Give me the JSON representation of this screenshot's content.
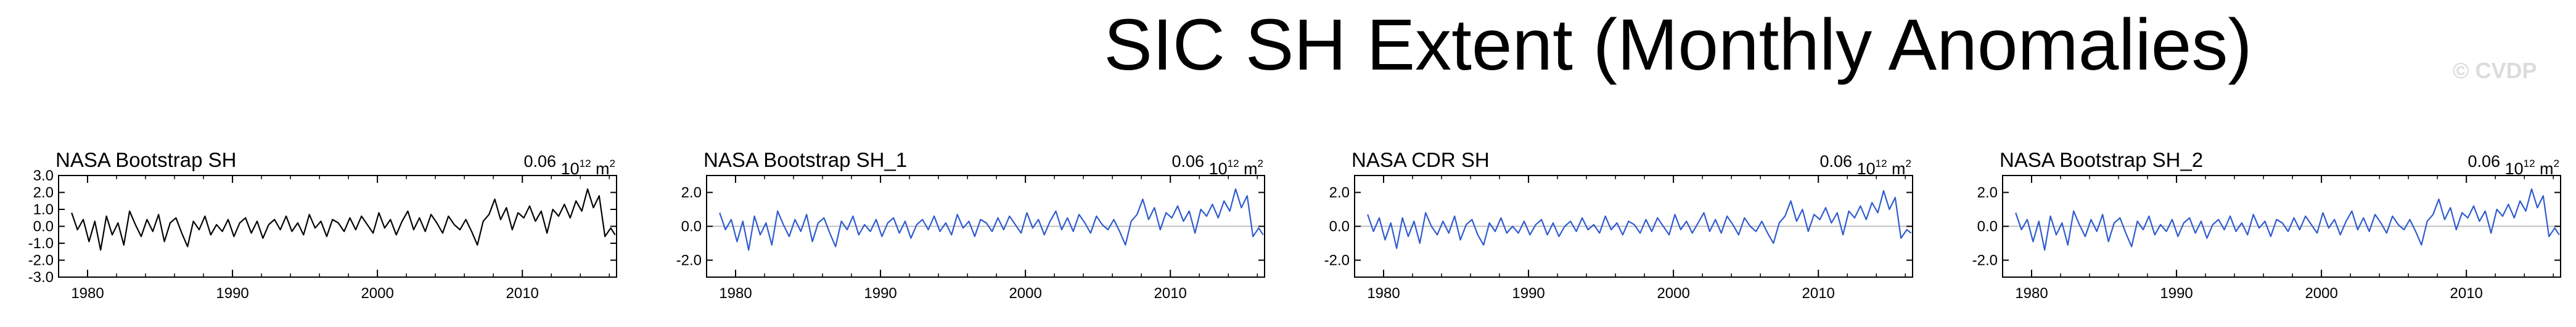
{
  "figure": {
    "title": "SIC SH Extent (Monthly Anomalies)",
    "credit": "© CVDP"
  },
  "colors": {
    "black_series": "#000000",
    "blue_series": "#2f5bd0",
    "zero_line": "#bfbfbf",
    "credit": "#dcdcdc"
  },
  "chart_data": [
    {
      "type": "line",
      "title": "NASA Bootstrap SH",
      "units": {
        "value": "0.06",
        "base": "10",
        "exp": "12",
        "unit": "m",
        "unit_exp": "2"
      },
      "series_color": "#000000",
      "xlim": [
        1978,
        2016.5
      ],
      "ylim": [
        -3.0,
        3.0
      ],
      "yticks": [
        3.0,
        2.0,
        1.0,
        0.0,
        -1.0,
        -2.0,
        -3.0
      ],
      "yticklabels": [
        "3.0",
        "2.0",
        "1.0",
        "0.0",
        "-1.0",
        "-2.0",
        "-3.0"
      ],
      "xticks": [
        1980,
        1990,
        2000,
        2010
      ],
      "xticklabels": [
        "1980",
        "1990",
        "2000",
        "2010"
      ],
      "zero_line": false,
      "x": [
        1978.9,
        1979.3,
        1979.7,
        1980.1,
        1980.5,
        1980.9,
        1981.3,
        1981.7,
        1982.1,
        1982.5,
        1982.9,
        1983.3,
        1983.7,
        1984.1,
        1984.5,
        1984.9,
        1985.3,
        1985.7,
        1986.1,
        1986.5,
        1986.9,
        1987.3,
        1987.7,
        1988.1,
        1988.5,
        1988.9,
        1989.3,
        1989.7,
        1990.1,
        1990.5,
        1990.9,
        1991.3,
        1991.7,
        1992.1,
        1992.5,
        1992.9,
        1993.3,
        1993.7,
        1994.1,
        1994.5,
        1994.9,
        1995.3,
        1995.7,
        1996.1,
        1996.5,
        1996.9,
        1997.3,
        1997.7,
        1998.1,
        1998.5,
        1998.9,
        1999.3,
        1999.7,
        2000.1,
        2000.5,
        2000.9,
        2001.3,
        2001.7,
        2002.1,
        2002.5,
        2002.9,
        2003.3,
        2003.7,
        2004.1,
        2004.5,
        2004.9,
        2005.3,
        2005.7,
        2006.1,
        2006.5,
        2006.9,
        2007.3,
        2007.7,
        2008.1,
        2008.5,
        2008.9,
        2009.3,
        2009.7,
        2010.1,
        2010.5,
        2010.9,
        2011.3,
        2011.7,
        2012.1,
        2012.5,
        2012.9,
        2013.3,
        2013.7,
        2014.1,
        2014.5,
        2014.9,
        2015.3,
        2015.7,
        2016.1,
        2016.4
      ],
      "y": [
        0.8,
        -0.2,
        0.4,
        -0.9,
        0.3,
        -1.4,
        0.6,
        -0.5,
        0.2,
        -1.1,
        0.9,
        0.1,
        -0.6,
        0.4,
        -0.3,
        0.7,
        -0.9,
        0.2,
        0.5,
        -0.4,
        -1.2,
        0.3,
        -0.2,
        0.6,
        -0.5,
        0.1,
        -0.3,
        0.4,
        -0.6,
        0.2,
        0.5,
        -0.4,
        0.3,
        -0.7,
        0.1,
        0.4,
        -0.2,
        0.6,
        -0.3,
        0.2,
        -0.5,
        0.7,
        -0.1,
        0.3,
        -0.6,
        0.4,
        0.2,
        -0.3,
        0.5,
        -0.2,
        0.6,
        0.1,
        -0.4,
        0.8,
        -0.1,
        0.4,
        -0.5,
        0.3,
        0.9,
        -0.2,
        0.5,
        -0.3,
        0.7,
        0.2,
        -0.4,
        0.6,
        0.1,
        -0.2,
        0.4,
        -0.3,
        -1.1,
        0.3,
        0.7,
        1.6,
        0.4,
        1.1,
        -0.2,
        0.8,
        0.5,
        1.2,
        0.3,
        0.9,
        -0.4,
        1.0,
        0.6,
        1.3,
        0.5,
        1.5,
        0.9,
        2.2,
        1.1,
        1.8,
        -0.6,
        -0.1,
        -0.5
      ]
    },
    {
      "type": "line",
      "title": "NASA Bootstrap SH_1",
      "units": {
        "value": "0.06",
        "base": "10",
        "exp": "12",
        "unit": "m",
        "unit_exp": "2"
      },
      "series_color": "#2f5bd0",
      "xlim": [
        1978,
        2016.5
      ],
      "ylim": [
        -3.0,
        3.0
      ],
      "yticks": [
        2.0,
        0.0,
        -2.0
      ],
      "yticklabels": [
        "2.0",
        "0.0",
        "-2.0"
      ],
      "xticks": [
        1980,
        1990,
        2000,
        2010
      ],
      "xticklabels": [
        "1980",
        "1990",
        "2000",
        "2010"
      ],
      "zero_line": true,
      "x": [
        1978.9,
        1979.3,
        1979.7,
        1980.1,
        1980.5,
        1980.9,
        1981.3,
        1981.7,
        1982.1,
        1982.5,
        1982.9,
        1983.3,
        1983.7,
        1984.1,
        1984.5,
        1984.9,
        1985.3,
        1985.7,
        1986.1,
        1986.5,
        1986.9,
        1987.3,
        1987.7,
        1988.1,
        1988.5,
        1988.9,
        1989.3,
        1989.7,
        1990.1,
        1990.5,
        1990.9,
        1991.3,
        1991.7,
        1992.1,
        1992.5,
        1992.9,
        1993.3,
        1993.7,
        1994.1,
        1994.5,
        1994.9,
        1995.3,
        1995.7,
        1996.1,
        1996.5,
        1996.9,
        1997.3,
        1997.7,
        1998.1,
        1998.5,
        1998.9,
        1999.3,
        1999.7,
        2000.1,
        2000.5,
        2000.9,
        2001.3,
        2001.7,
        2002.1,
        2002.5,
        2002.9,
        2003.3,
        2003.7,
        2004.1,
        2004.5,
        2004.9,
        2005.3,
        2005.7,
        2006.1,
        2006.5,
        2006.9,
        2007.3,
        2007.7,
        2008.1,
        2008.5,
        2008.9,
        2009.3,
        2009.7,
        2010.1,
        2010.5,
        2010.9,
        2011.3,
        2011.7,
        2012.1,
        2012.5,
        2012.9,
        2013.3,
        2013.7,
        2014.1,
        2014.5,
        2014.9,
        2015.3,
        2015.7,
        2016.1,
        2016.4
      ],
      "y": [
        0.8,
        -0.2,
        0.4,
        -0.9,
        0.3,
        -1.4,
        0.6,
        -0.5,
        0.2,
        -1.1,
        0.9,
        0.1,
        -0.6,
        0.4,
        -0.3,
        0.7,
        -0.9,
        0.2,
        0.5,
        -0.4,
        -1.2,
        0.3,
        -0.2,
        0.6,
        -0.5,
        0.1,
        -0.3,
        0.4,
        -0.6,
        0.2,
        0.5,
        -0.4,
        0.3,
        -0.7,
        0.1,
        0.4,
        -0.2,
        0.6,
        -0.3,
        0.2,
        -0.5,
        0.7,
        -0.1,
        0.3,
        -0.6,
        0.4,
        0.2,
        -0.3,
        0.5,
        -0.2,
        0.6,
        0.1,
        -0.4,
        0.8,
        -0.1,
        0.4,
        -0.5,
        0.3,
        0.9,
        -0.2,
        0.5,
        -0.3,
        0.7,
        0.2,
        -0.4,
        0.6,
        0.1,
        -0.2,
        0.4,
        -0.3,
        -1.1,
        0.3,
        0.7,
        1.6,
        0.4,
        1.1,
        -0.2,
        0.8,
        0.5,
        1.2,
        0.3,
        0.9,
        -0.4,
        1.0,
        0.6,
        1.3,
        0.5,
        1.5,
        0.9,
        2.2,
        1.1,
        1.8,
        -0.6,
        -0.1,
        -0.5
      ]
    },
    {
      "type": "line",
      "title": "NASA CDR SH",
      "units": {
        "value": "0.06",
        "base": "10",
        "exp": "12",
        "unit": "m",
        "unit_exp": "2"
      },
      "series_color": "#2f5bd0",
      "xlim": [
        1978,
        2016.5
      ],
      "ylim": [
        -3.0,
        3.0
      ],
      "yticks": [
        2.0,
        0.0,
        -2.0
      ],
      "yticklabels": [
        "2.0",
        "0.0",
        "-2.0"
      ],
      "xticks": [
        1980,
        1990,
        2000,
        2010
      ],
      "xticklabels": [
        "1980",
        "1990",
        "2000",
        "2010"
      ],
      "zero_line": true,
      "x": [
        1978.9,
        1979.3,
        1979.7,
        1980.1,
        1980.5,
        1980.9,
        1981.3,
        1981.7,
        1982.1,
        1982.5,
        1982.9,
        1983.3,
        1983.7,
        1984.1,
        1984.5,
        1984.9,
        1985.3,
        1985.7,
        1986.1,
        1986.5,
        1986.9,
        1987.3,
        1987.7,
        1988.1,
        1988.5,
        1988.9,
        1989.3,
        1989.7,
        1990.1,
        1990.5,
        1990.9,
        1991.3,
        1991.7,
        1992.1,
        1992.5,
        1992.9,
        1993.3,
        1993.7,
        1994.1,
        1994.5,
        1994.9,
        1995.3,
        1995.7,
        1996.1,
        1996.5,
        1996.9,
        1997.3,
        1997.7,
        1998.1,
        1998.5,
        1998.9,
        1999.3,
        1999.7,
        2000.1,
        2000.5,
        2000.9,
        2001.3,
        2001.7,
        2002.1,
        2002.5,
        2002.9,
        2003.3,
        2003.7,
        2004.1,
        2004.5,
        2004.9,
        2005.3,
        2005.7,
        2006.1,
        2006.5,
        2006.9,
        2007.3,
        2007.7,
        2008.1,
        2008.5,
        2008.9,
        2009.3,
        2009.7,
        2010.1,
        2010.5,
        2010.9,
        2011.3,
        2011.7,
        2012.1,
        2012.5,
        2012.9,
        2013.3,
        2013.7,
        2014.1,
        2014.5,
        2014.9,
        2015.3,
        2015.7,
        2016.1,
        2016.4
      ],
      "y": [
        0.7,
        -0.3,
        0.5,
        -0.8,
        0.2,
        -1.3,
        0.5,
        -0.6,
        0.3,
        -1.0,
        0.8,
        0.0,
        -0.5,
        0.3,
        -0.4,
        0.6,
        -0.8,
        0.1,
        0.4,
        -0.5,
        -1.1,
        0.2,
        -0.3,
        0.5,
        -0.4,
        0.0,
        -0.4,
        0.3,
        -0.5,
        0.1,
        0.4,
        -0.5,
        0.2,
        -0.6,
        0.0,
        0.3,
        -0.3,
        0.5,
        -0.2,
        0.1,
        -0.4,
        0.6,
        -0.2,
        0.2,
        -0.5,
        0.3,
        0.1,
        -0.4,
        0.4,
        -0.3,
        0.5,
        0.0,
        -0.5,
        0.7,
        -0.2,
        0.3,
        -0.4,
        0.2,
        0.8,
        -0.3,
        0.4,
        -0.4,
        0.6,
        0.1,
        -0.5,
        0.5,
        0.0,
        -0.3,
        0.3,
        -0.4,
        -1.0,
        0.2,
        0.6,
        1.5,
        0.3,
        1.0,
        -0.3,
        0.7,
        0.4,
        1.1,
        0.2,
        0.8,
        -0.5,
        0.9,
        0.5,
        1.2,
        0.4,
        1.4,
        0.8,
        2.1,
        1.0,
        1.7,
        -0.7,
        -0.2,
        -0.4
      ]
    },
    {
      "type": "line",
      "title": "NASA Bootstrap SH_2",
      "units": {
        "value": "0.06",
        "base": "10",
        "exp": "12",
        "unit": "m",
        "unit_exp": "2"
      },
      "series_color": "#2f5bd0",
      "xlim": [
        1978,
        2016.5
      ],
      "ylim": [
        -3.0,
        3.0
      ],
      "yticks": [
        2.0,
        0.0,
        -2.0
      ],
      "yticklabels": [
        "2.0",
        "0.0",
        "-2.0"
      ],
      "xticks": [
        1980,
        1990,
        2000,
        2010
      ],
      "xticklabels": [
        "1980",
        "1990",
        "2000",
        "2010"
      ],
      "zero_line": true,
      "x": [
        1978.9,
        1979.3,
        1979.7,
        1980.1,
        1980.5,
        1980.9,
        1981.3,
        1981.7,
        1982.1,
        1982.5,
        1982.9,
        1983.3,
        1983.7,
        1984.1,
        1984.5,
        1984.9,
        1985.3,
        1985.7,
        1986.1,
        1986.5,
        1986.9,
        1987.3,
        1987.7,
        1988.1,
        1988.5,
        1988.9,
        1989.3,
        1989.7,
        1990.1,
        1990.5,
        1990.9,
        1991.3,
        1991.7,
        1992.1,
        1992.5,
        1992.9,
        1993.3,
        1993.7,
        1994.1,
        1994.5,
        1994.9,
        1995.3,
        1995.7,
        1996.1,
        1996.5,
        1996.9,
        1997.3,
        1997.7,
        1998.1,
        1998.5,
        1998.9,
        1999.3,
        1999.7,
        2000.1,
        2000.5,
        2000.9,
        2001.3,
        2001.7,
        2002.1,
        2002.5,
        2002.9,
        2003.3,
        2003.7,
        2004.1,
        2004.5,
        2004.9,
        2005.3,
        2005.7,
        2006.1,
        2006.5,
        2006.9,
        2007.3,
        2007.7,
        2008.1,
        2008.5,
        2008.9,
        2009.3,
        2009.7,
        2010.1,
        2010.5,
        2010.9,
        2011.3,
        2011.7,
        2012.1,
        2012.5,
        2012.9,
        2013.3,
        2013.7,
        2014.1,
        2014.5,
        2014.9,
        2015.3,
        2015.7,
        2016.1,
        2016.4
      ],
      "y": [
        0.8,
        -0.2,
        0.4,
        -0.9,
        0.3,
        -1.4,
        0.6,
        -0.5,
        0.2,
        -1.1,
        0.9,
        0.1,
        -0.6,
        0.4,
        -0.3,
        0.7,
        -0.9,
        0.2,
        0.5,
        -0.4,
        -1.2,
        0.3,
        -0.2,
        0.6,
        -0.5,
        0.1,
        -0.3,
        0.4,
        -0.6,
        0.2,
        0.5,
        -0.4,
        0.3,
        -0.7,
        0.1,
        0.4,
        -0.2,
        0.6,
        -0.3,
        0.2,
        -0.5,
        0.7,
        -0.1,
        0.3,
        -0.6,
        0.4,
        0.2,
        -0.3,
        0.5,
        -0.2,
        0.6,
        0.1,
        -0.4,
        0.8,
        -0.1,
        0.4,
        -0.5,
        0.3,
        0.9,
        -0.2,
        0.5,
        -0.3,
        0.7,
        0.2,
        -0.4,
        0.6,
        0.1,
        -0.2,
        0.4,
        -0.3,
        -1.1,
        0.3,
        0.7,
        1.6,
        0.4,
        1.1,
        -0.2,
        0.8,
        0.5,
        1.2,
        0.3,
        0.9,
        -0.4,
        1.0,
        0.6,
        1.3,
        0.5,
        1.5,
        0.9,
        2.2,
        1.1,
        1.8,
        -0.6,
        -0.1,
        -0.5
      ]
    }
  ]
}
